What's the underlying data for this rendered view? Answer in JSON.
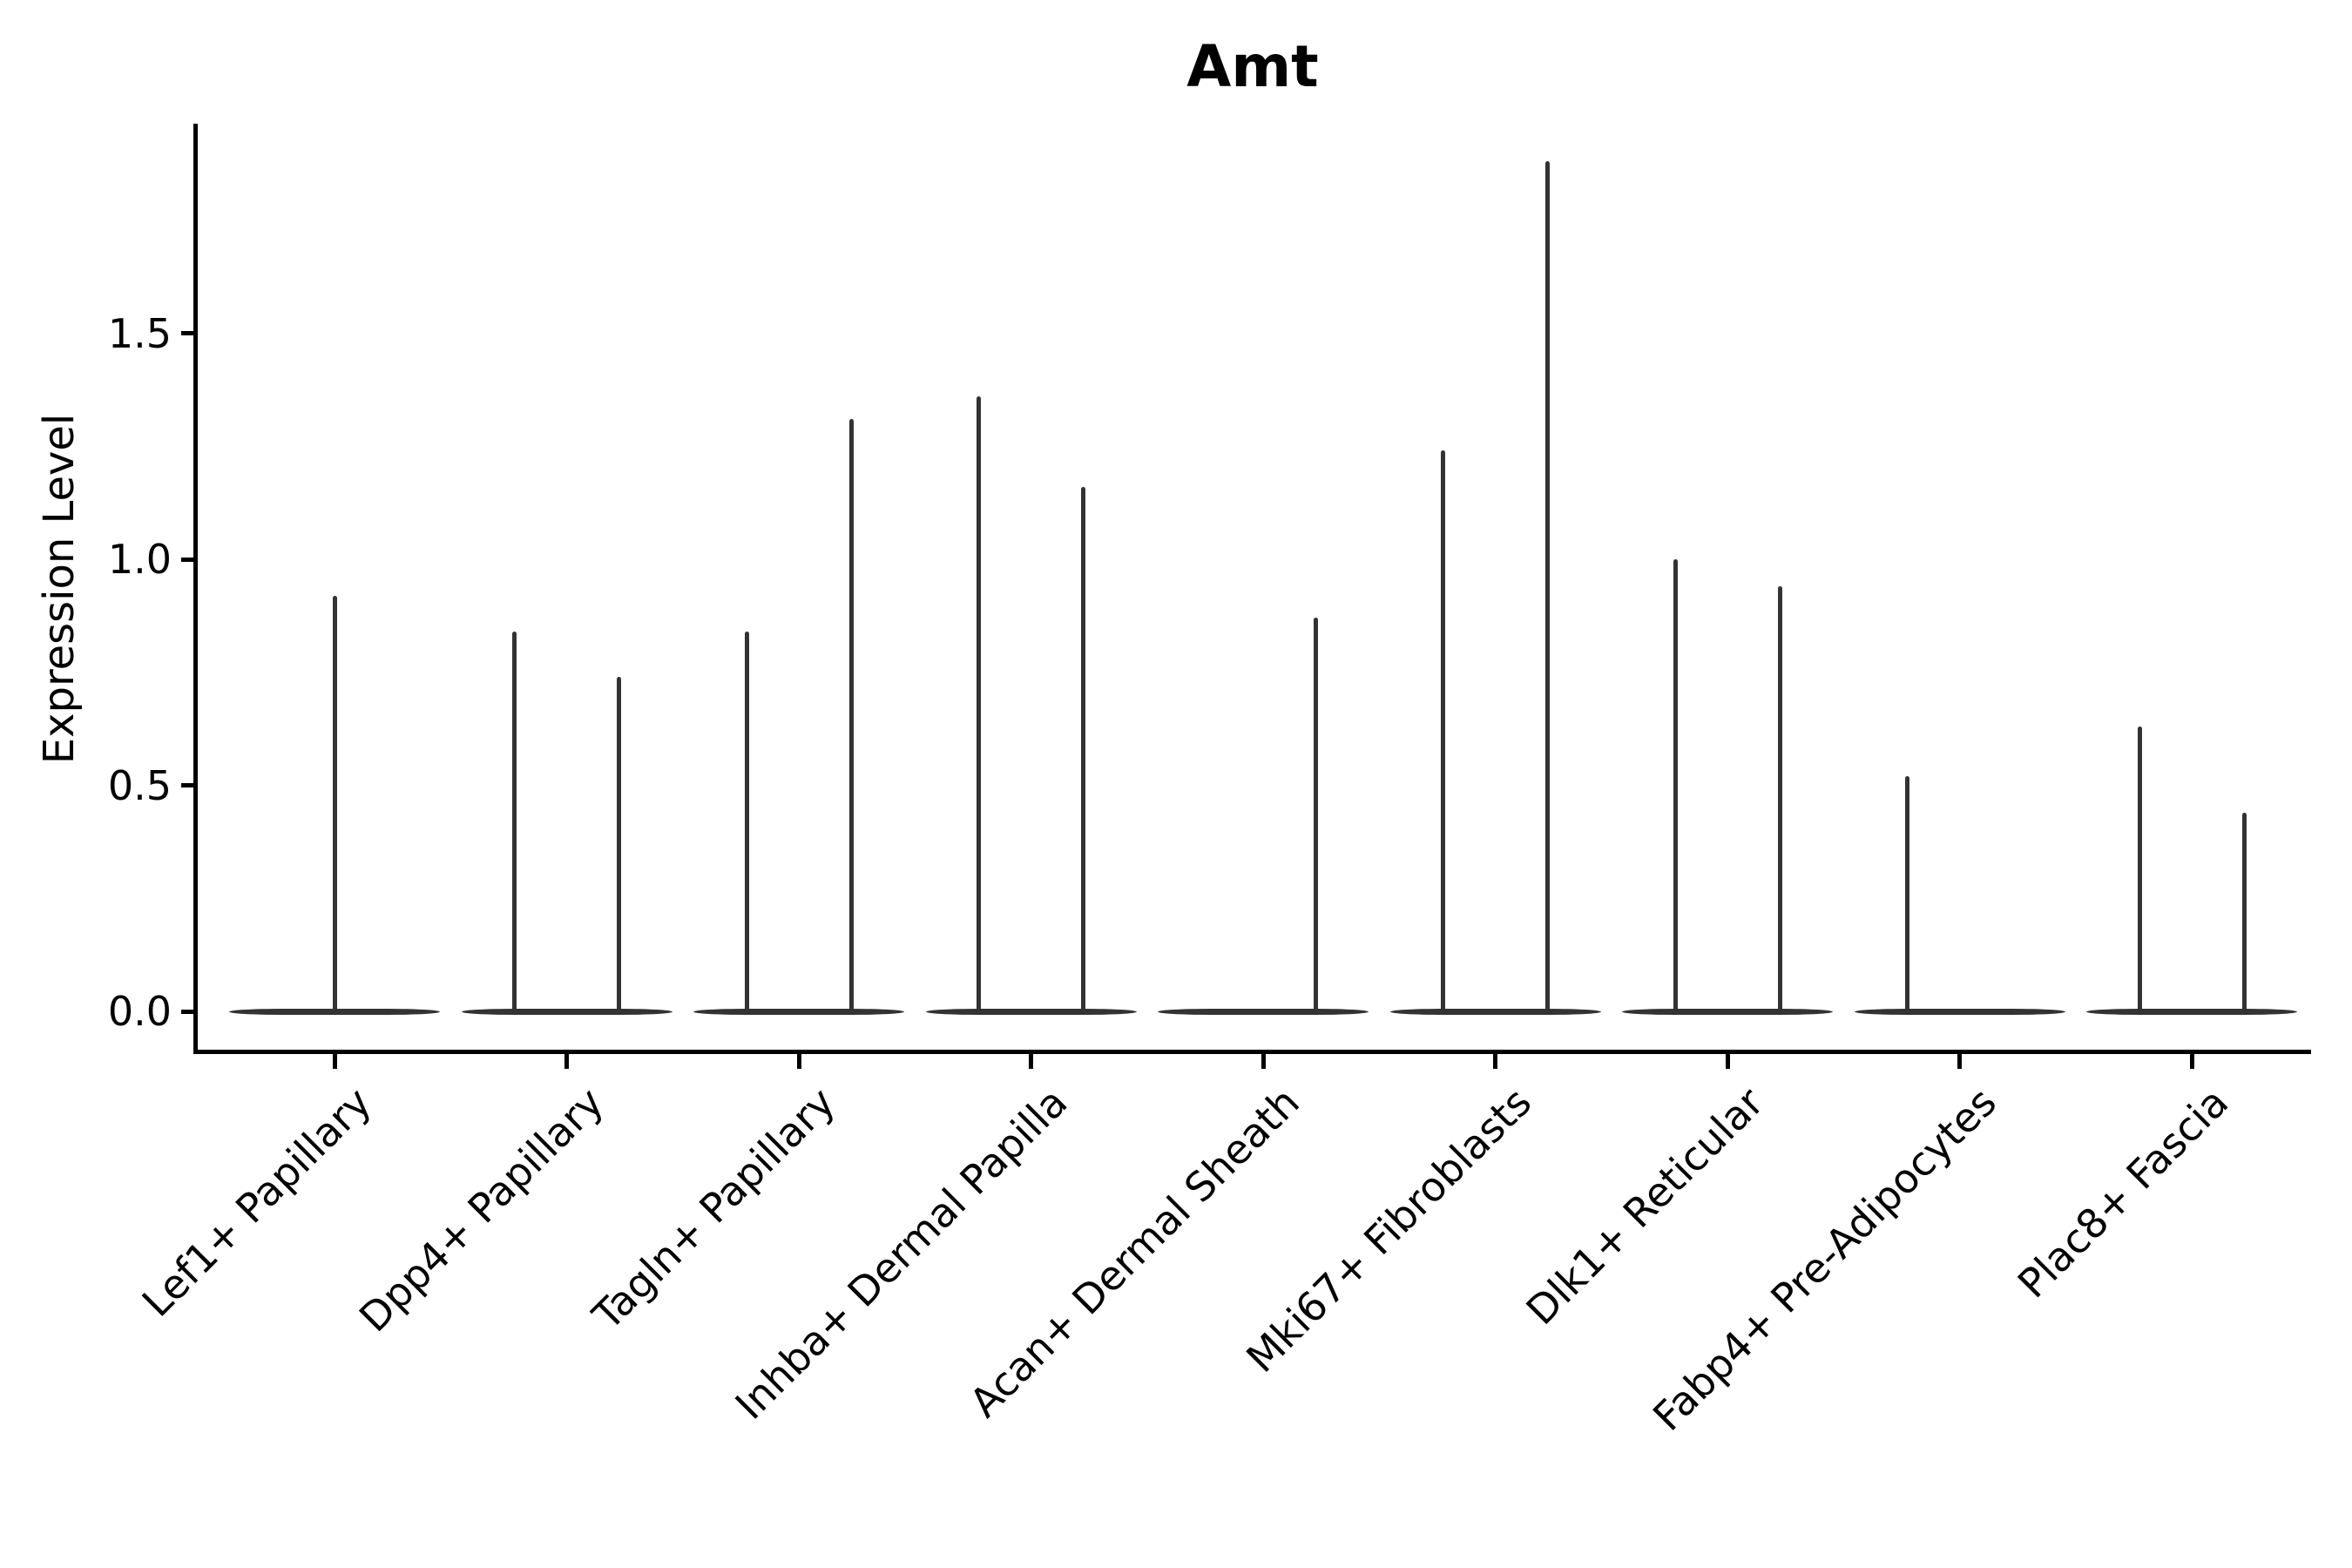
{
  "figure": {
    "title": "Amt",
    "ylabel": "Expression Level",
    "background_color": "#ffffff",
    "violin_color": "#333333",
    "axis_color": "#000000"
  },
  "chart_data": {
    "type": "violin",
    "title": "Amt",
    "xlabel": "",
    "ylabel": "Expression Level",
    "ylim": [
      0,
      1.96
    ],
    "yticks": [
      0.0,
      0.5,
      1.0,
      1.5
    ],
    "ytick_labels": [
      "0.0",
      "0.5",
      "1.0",
      "1.5"
    ],
    "grid": false,
    "legend": "none",
    "x_label_rotation_deg": 45,
    "description": "Needle-shaped violin plot of gene expression; each category shows flat zero-density bodies at 0.0 with thin spikes reaching the maximum expression value. Several categories contain two side-by-side violins.",
    "categories": [
      "Lef1+ Papillary",
      "Dpp4+ Papillary",
      "Tagln+ Papillary",
      "Inhba+ Dermal Papilla",
      "Acan+ Dermal Sheath",
      "Mki67+ Fibroblasts",
      "Dlk1+ Reticular",
      "Fabp4+ Pre-Adipocytes",
      "Plac8+ Fascia"
    ],
    "series": [
      {
        "category": "Lef1+ Papillary",
        "violins": [
          {
            "slot": "center",
            "max_expression": 0.92
          }
        ]
      },
      {
        "category": "Dpp4+ Papillary",
        "violins": [
          {
            "slot": "left",
            "max_expression": 0.84
          },
          {
            "slot": "right",
            "max_expression": 0.74
          }
        ]
      },
      {
        "category": "Tagln+ Papillary",
        "violins": [
          {
            "slot": "left",
            "max_expression": 0.84
          },
          {
            "slot": "right",
            "max_expression": 1.31
          }
        ]
      },
      {
        "category": "Inhba+ Dermal Papilla",
        "violins": [
          {
            "slot": "left",
            "max_expression": 1.36
          },
          {
            "slot": "right",
            "max_expression": 1.16
          }
        ]
      },
      {
        "category": "Acan+ Dermal Sheath",
        "violins": [
          {
            "slot": "left",
            "max_expression": 0.0
          },
          {
            "slot": "right",
            "max_expression": 0.87
          }
        ]
      },
      {
        "category": "Mki67+ Fibroblasts",
        "violins": [
          {
            "slot": "left",
            "max_expression": 1.24
          },
          {
            "slot": "right",
            "max_expression": 1.88
          }
        ]
      },
      {
        "category": "Dlk1+ Reticular",
        "violins": [
          {
            "slot": "left",
            "max_expression": 1.0
          },
          {
            "slot": "right",
            "max_expression": 0.94
          }
        ]
      },
      {
        "category": "Fabp4+ Pre-Adipocytes",
        "violins": [
          {
            "slot": "left",
            "max_expression": 0.52
          },
          {
            "slot": "right",
            "max_expression": 0.0
          }
        ]
      },
      {
        "category": "Plac8+ Fascia",
        "violins": [
          {
            "slot": "left",
            "max_expression": 0.63
          },
          {
            "slot": "right",
            "max_expression": 0.44
          }
        ]
      }
    ]
  }
}
